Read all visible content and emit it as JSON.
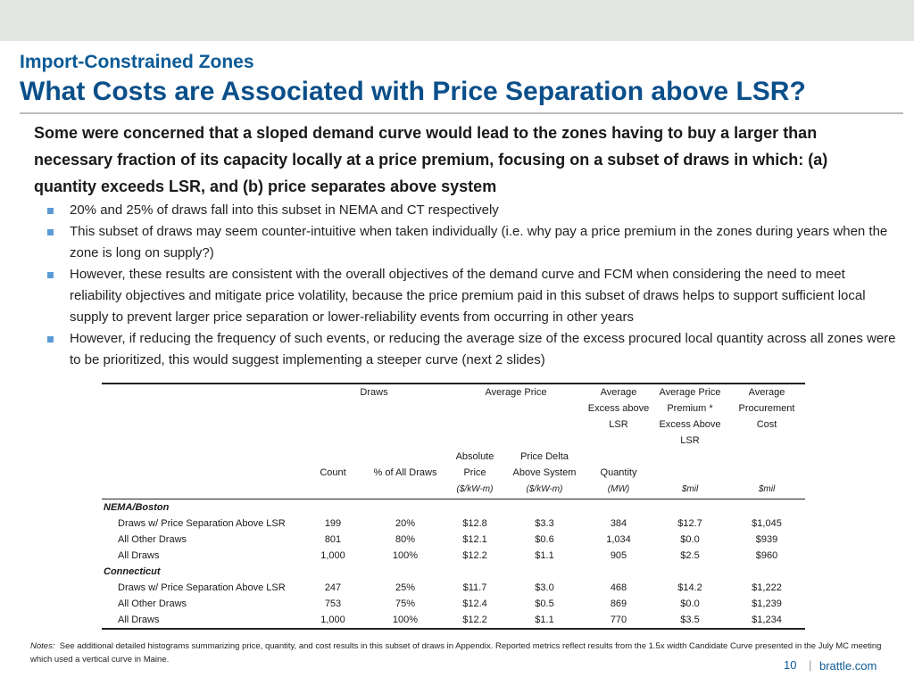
{
  "header": {
    "subtitle": "Import-Constrained Zones",
    "title": "What Costs are Associated with Price Separation above LSR?"
  },
  "lead": "Some were concerned that a sloped demand curve would lead to the zones having to buy a larger than necessary fraction of its capacity locally at a price premium, focusing on a subset of draws in which: (a) quantity exceeds LSR, and (b) price separates above system",
  "bullets": [
    "20% and 25% of draws fall into this subset in NEMA and CT respectively",
    "This subset of draws may seem counter-intuitive when taken individually (i.e. why pay a price premium in the zones during years when the zone is long on supply?)",
    "However, these results are consistent with the overall objectives of the demand curve and FCM when considering the need to meet reliability objectives and mitigate price volatility, because the price premium paid in this subset of draws helps to support sufficient local supply to prevent larger price separation or lower-reliability events from occurring in other years",
    "However, if reducing the frequency of such events, or reducing the average size of the excess procured local quantity across all zones were to be prioritized, this would suggest implementing a steeper curve (next 2 slides)"
  ],
  "table": {
    "groups": {
      "draws": "Draws",
      "avg_price": "Average Price",
      "excess_l1": "Average",
      "excess_l2": "Excess above",
      "excess_l3": "LSR",
      "premium_l1": "Average Price",
      "premium_l2": "Premium *",
      "premium_l3": "Excess Above",
      "premium_l4": "LSR",
      "cost_l1": "Average",
      "cost_l2": "Procurement",
      "cost_l3": "Cost"
    },
    "cols": {
      "count": "Count",
      "pct": "% of All Draws",
      "abs_l1": "Absolute",
      "abs_l2": "Price",
      "delta_l1": "Price Delta",
      "delta_l2": "Above System",
      "quantity": "Quantity"
    },
    "units": {
      "abs": "($/kW-m)",
      "delta": "($/kW-m)",
      "quantity": "(MW)",
      "premium": "$mil",
      "cost": "$mil"
    },
    "sections": [
      {
        "name": "NEMA/Boston",
        "rows": [
          {
            "label": "Draws w/ Price Separation Above LSR",
            "count": "199",
            "pct": "20%",
            "abs": "$12.8",
            "delta": "$3.3",
            "qty": "384",
            "premium": "$12.7",
            "cost": "$1,045"
          },
          {
            "label": "All Other Draws",
            "count": "801",
            "pct": "80%",
            "abs": "$12.1",
            "delta": "$0.6",
            "qty": "1,034",
            "premium": "$0.0",
            "cost": "$939"
          },
          {
            "label": "All Draws",
            "count": "1,000",
            "pct": "100%",
            "abs": "$12.2",
            "delta": "$1.1",
            "qty": "905",
            "premium": "$2.5",
            "cost": "$960"
          }
        ]
      },
      {
        "name": "Connecticut",
        "rows": [
          {
            "label": "Draws w/ Price Separation Above LSR",
            "count": "247",
            "pct": "25%",
            "abs": "$11.7",
            "delta": "$3.0",
            "qty": "468",
            "premium": "$14.2",
            "cost": "$1,222"
          },
          {
            "label": "All Other Draws",
            "count": "753",
            "pct": "75%",
            "abs": "$12.4",
            "delta": "$0.5",
            "qty": "869",
            "premium": "$0.0",
            "cost": "$1,239"
          },
          {
            "label": "All Draws",
            "count": "1,000",
            "pct": "100%",
            "abs": "$12.2",
            "delta": "$1.1",
            "qty": "770",
            "premium": "$3.5",
            "cost": "$1,234"
          }
        ]
      }
    ]
  },
  "notes": {
    "label": "Notes:",
    "text": "See additional detailed histograms summarizing price, quantity, and cost results in this subset of draws in Appendix. Reported metrics reflect results from the 1.5x width Candidate Curve presented in the July MC meeting which used a vertical curve in Maine."
  },
  "footer": {
    "page": "10",
    "separator": "|",
    "site": "brattle.com"
  },
  "colors": {
    "title": "#0a4f8a",
    "bullet": "#5b9bd5",
    "topbar": "#e3e5e1"
  }
}
